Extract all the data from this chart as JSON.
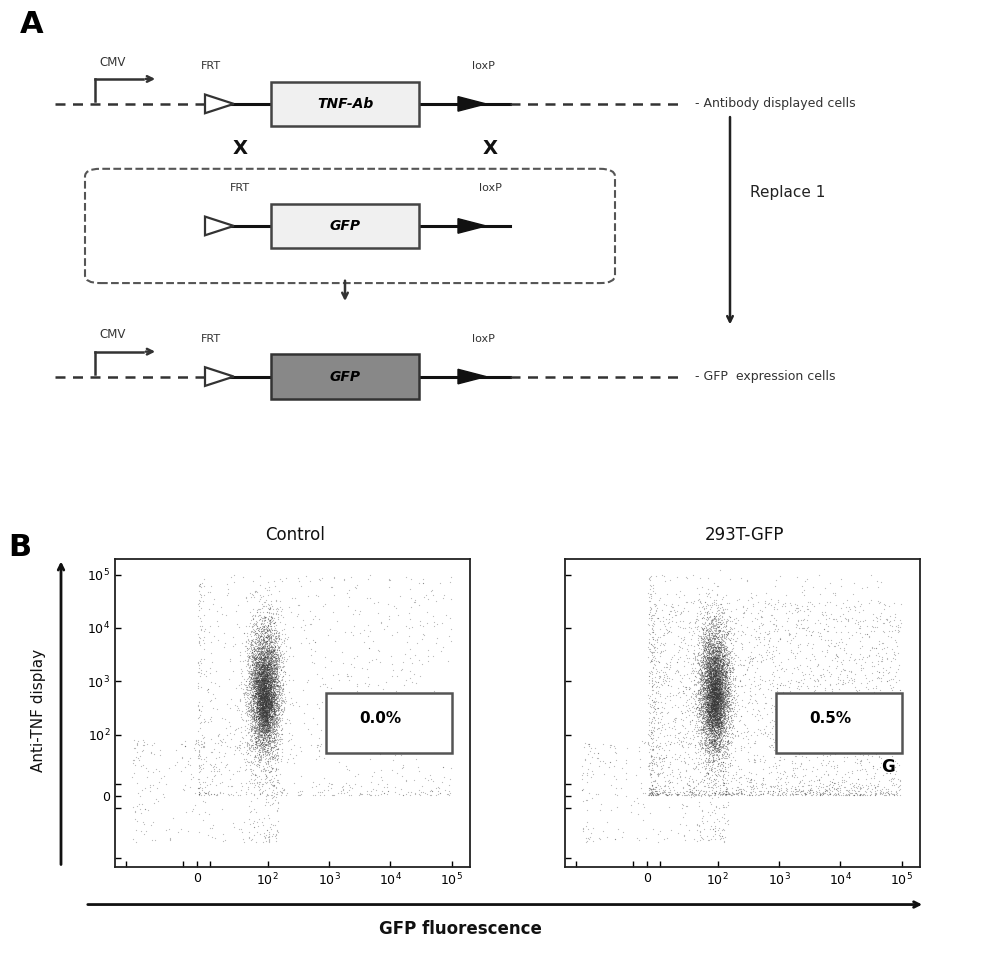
{
  "bg_color": "#ffffff",
  "panel_A": {
    "label": "A",
    "replace_label": "Replace 1",
    "line1_label_right": "- Antibody displayed cells",
    "line3_label_right": "- GFP  expression cells",
    "gene1_label": "TNF-Ab",
    "gene1_color": "#f0f0f0",
    "gene2_label": "GFP",
    "gene2_color": "#f0f0f0",
    "gene3_label": "GFP",
    "gene3_color": "#888888",
    "frt_label": "FRT",
    "loxp_label": "loxP",
    "cmv_label": "CMV"
  },
  "panel_B": {
    "label": "B",
    "left_title": "Control",
    "right_title": "293T-GFP",
    "xlabel": "GFP fluorescence",
    "ylabel": "Anti-TNF display",
    "left_percent": "0.0%",
    "right_percent": "0.5%",
    "right_gate_label": "G"
  }
}
